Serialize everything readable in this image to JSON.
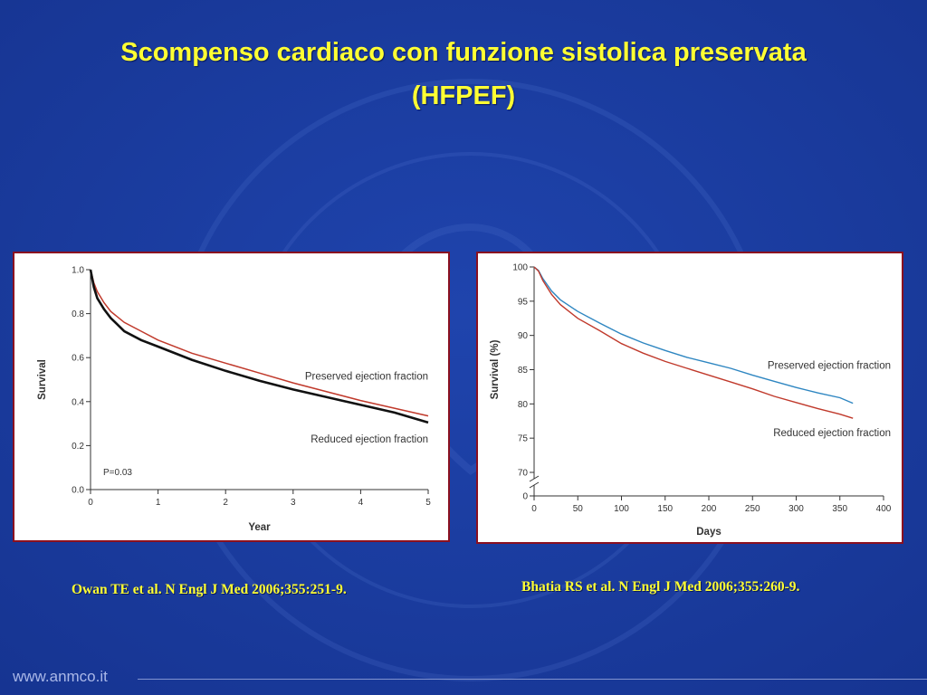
{
  "slide": {
    "title_line1": "Scompenso cardiaco con funzione sistolica preservata",
    "title_line2": "(HFPEF)",
    "footer_url": "www.anmco.it",
    "citation_left": "Owan TE et al. N Engl J Med 2006;355:251-9.",
    "citation_right": "Bhatia RS et al. N Engl J Med 2006;355:260-9.",
    "colors": {
      "background": "#1a3a9c",
      "title": "#ffff33",
      "panel_border": "#8a1020"
    }
  },
  "chart_data": [
    {
      "type": "line",
      "xlabel": "Year",
      "ylabel": "Survival",
      "xlim": [
        0,
        5
      ],
      "ylim": [
        0,
        1.0
      ],
      "xticks": [
        "0",
        "1",
        "2",
        "3",
        "4",
        "5"
      ],
      "yticks": [
        "0.0",
        "0.2",
        "0.4",
        "0.6",
        "0.8",
        "1.0"
      ],
      "annotation": "P=0.03",
      "series": [
        {
          "name": "Preserved ejection fraction",
          "color": "#c0392b",
          "x": [
            0,
            0.05,
            0.1,
            0.2,
            0.3,
            0.5,
            0.75,
            1.0,
            1.5,
            2.0,
            2.5,
            3.0,
            3.5,
            4.0,
            4.5,
            5.0
          ],
          "y": [
            1.0,
            0.94,
            0.9,
            0.85,
            0.81,
            0.76,
            0.72,
            0.68,
            0.62,
            0.575,
            0.53,
            0.485,
            0.445,
            0.405,
            0.37,
            0.335
          ]
        },
        {
          "name": "Reduced ejection fraction",
          "color": "#111111",
          "x": [
            0,
            0.05,
            0.1,
            0.2,
            0.3,
            0.5,
            0.75,
            1.0,
            1.5,
            2.0,
            2.5,
            3.0,
            3.5,
            4.0,
            4.5,
            5.0
          ],
          "y": [
            1.0,
            0.92,
            0.87,
            0.82,
            0.78,
            0.72,
            0.68,
            0.65,
            0.59,
            0.54,
            0.495,
            0.455,
            0.42,
            0.385,
            0.35,
            0.305
          ]
        }
      ]
    },
    {
      "type": "line",
      "xlabel": "Days",
      "ylabel": "Survival (%)",
      "xlim": [
        0,
        400
      ],
      "ylim": [
        70,
        100
      ],
      "axis_break": true,
      "xticks": [
        "0",
        "50",
        "100",
        "150",
        "200",
        "250",
        "300",
        "350",
        "400"
      ],
      "yticks": [
        "0",
        "70",
        "75",
        "80",
        "85",
        "90",
        "95",
        "100"
      ],
      "series": [
        {
          "name": "Preserved ejection fraction",
          "color": "#2e86c1",
          "x": [
            0,
            5,
            10,
            20,
            30,
            50,
            75,
            100,
            125,
            150,
            175,
            200,
            225,
            250,
            275,
            300,
            325,
            350,
            365
          ],
          "y": [
            100,
            99.5,
            98.3,
            96.5,
            95.2,
            93.5,
            91.8,
            90.2,
            88.9,
            87.8,
            86.8,
            86.0,
            85.2,
            84.2,
            83.3,
            82.4,
            81.6,
            80.9,
            80.1
          ]
        },
        {
          "name": "Reduced ejection fraction",
          "color": "#c0392b",
          "x": [
            0,
            5,
            10,
            20,
            30,
            50,
            75,
            100,
            125,
            150,
            175,
            200,
            225,
            250,
            275,
            300,
            325,
            350,
            365
          ],
          "y": [
            100,
            99.4,
            98.0,
            96.0,
            94.5,
            92.5,
            90.7,
            88.8,
            87.4,
            86.2,
            85.2,
            84.2,
            83.2,
            82.2,
            81.1,
            80.2,
            79.3,
            78.5,
            77.9
          ]
        }
      ]
    }
  ]
}
